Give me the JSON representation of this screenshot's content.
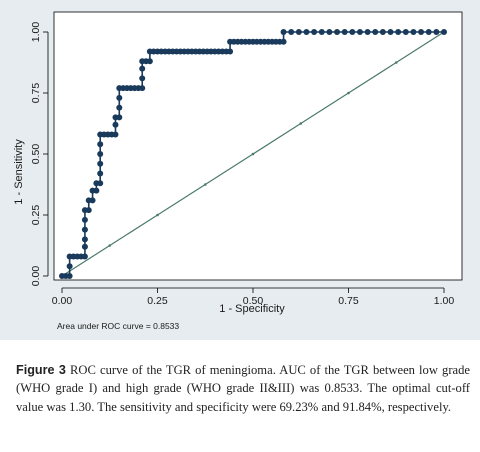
{
  "figure": {
    "caption_label": "Figure 3",
    "caption_text": "ROC curve of the TGR of meningioma. AUC of the TGR between low grade (WHO grade I) and high grade (WHO grade II&III) was 0.8533. The optimal cut-off value was 1.30. The sensitivity and specificity were 69.23% and 91.84%, respectively."
  },
  "chart_data": {
    "type": "line",
    "xlabel": "1 - Specificity",
    "ylabel": "1 - Sensitivity",
    "xlim": [
      0,
      1
    ],
    "ylim": [
      0,
      1
    ],
    "x_ticks": [
      0.0,
      0.25,
      0.5,
      0.75,
      1.0
    ],
    "x_tick_labels": [
      "0.00",
      "0.25",
      "0.50",
      "0.75",
      "1.00"
    ],
    "y_ticks": [
      0.0,
      0.25,
      0.5,
      0.75,
      1.0
    ],
    "y_tick_labels": [
      "0.00",
      "0.25",
      "0.50",
      "0.75",
      "1.00"
    ],
    "grid": false,
    "annotation": "Area under ROC curve = 0.8533",
    "colors": {
      "roc": "#1a3a5c",
      "reference": "#4a7a6a",
      "panel": "#e6ecf0"
    },
    "series": [
      {
        "points": [
          [
            0.0,
            0.0
          ],
          [
            0.01,
            0.0
          ],
          [
            0.02,
            0.0
          ],
          [
            0.02,
            0.04
          ],
          [
            0.02,
            0.08
          ],
          [
            0.03,
            0.08
          ],
          [
            0.04,
            0.08
          ],
          [
            0.05,
            0.08
          ],
          [
            0.06,
            0.08
          ],
          [
            0.06,
            0.12
          ],
          [
            0.06,
            0.15
          ],
          [
            0.06,
            0.19
          ],
          [
            0.06,
            0.23
          ],
          [
            0.06,
            0.27
          ],
          [
            0.07,
            0.27
          ],
          [
            0.07,
            0.31
          ],
          [
            0.08,
            0.31
          ],
          [
            0.08,
            0.35
          ],
          [
            0.09,
            0.35
          ],
          [
            0.09,
            0.38
          ],
          [
            0.1,
            0.38
          ],
          [
            0.1,
            0.42
          ],
          [
            0.1,
            0.46
          ],
          [
            0.1,
            0.5
          ],
          [
            0.1,
            0.54
          ],
          [
            0.1,
            0.58
          ],
          [
            0.11,
            0.58
          ],
          [
            0.12,
            0.58
          ],
          [
            0.13,
            0.58
          ],
          [
            0.14,
            0.58
          ],
          [
            0.14,
            0.62
          ],
          [
            0.14,
            0.65
          ],
          [
            0.15,
            0.65
          ],
          [
            0.15,
            0.69
          ],
          [
            0.15,
            0.73
          ],
          [
            0.15,
            0.77
          ],
          [
            0.16,
            0.77
          ],
          [
            0.17,
            0.77
          ],
          [
            0.18,
            0.77
          ],
          [
            0.19,
            0.77
          ],
          [
            0.2,
            0.77
          ],
          [
            0.21,
            0.77
          ],
          [
            0.21,
            0.81
          ],
          [
            0.21,
            0.85
          ],
          [
            0.21,
            0.88
          ],
          [
            0.22,
            0.88
          ],
          [
            0.23,
            0.88
          ],
          [
            0.23,
            0.92
          ],
          [
            0.24,
            0.92
          ],
          [
            0.25,
            0.92
          ],
          [
            0.26,
            0.92
          ],
          [
            0.27,
            0.92
          ],
          [
            0.28,
            0.92
          ],
          [
            0.29,
            0.92
          ],
          [
            0.3,
            0.92
          ],
          [
            0.31,
            0.92
          ],
          [
            0.32,
            0.92
          ],
          [
            0.33,
            0.92
          ],
          [
            0.34,
            0.92
          ],
          [
            0.35,
            0.92
          ],
          [
            0.36,
            0.92
          ],
          [
            0.37,
            0.92
          ],
          [
            0.38,
            0.92
          ],
          [
            0.39,
            0.92
          ],
          [
            0.4,
            0.92
          ],
          [
            0.41,
            0.92
          ],
          [
            0.42,
            0.92
          ],
          [
            0.43,
            0.92
          ],
          [
            0.44,
            0.92
          ],
          [
            0.44,
            0.96
          ],
          [
            0.45,
            0.96
          ],
          [
            0.46,
            0.96
          ],
          [
            0.47,
            0.96
          ],
          [
            0.48,
            0.96
          ],
          [
            0.49,
            0.96
          ],
          [
            0.5,
            0.96
          ],
          [
            0.51,
            0.96
          ],
          [
            0.52,
            0.96
          ],
          [
            0.53,
            0.96
          ],
          [
            0.54,
            0.96
          ],
          [
            0.55,
            0.96
          ],
          [
            0.56,
            0.96
          ],
          [
            0.57,
            0.96
          ],
          [
            0.58,
            0.96
          ],
          [
            0.58,
            1.0
          ],
          [
            0.6,
            1.0
          ],
          [
            0.62,
            1.0
          ],
          [
            0.64,
            1.0
          ],
          [
            0.66,
            1.0
          ],
          [
            0.68,
            1.0
          ],
          [
            0.7,
            1.0
          ],
          [
            0.72,
            1.0
          ],
          [
            0.74,
            1.0
          ],
          [
            0.76,
            1.0
          ],
          [
            0.78,
            1.0
          ],
          [
            0.8,
            1.0
          ],
          [
            0.82,
            1.0
          ],
          [
            0.84,
            1.0
          ],
          [
            0.86,
            1.0
          ],
          [
            0.88,
            1.0
          ],
          [
            0.9,
            1.0
          ],
          [
            0.92,
            1.0
          ],
          [
            0.94,
            1.0
          ],
          [
            0.96,
            1.0
          ],
          [
            0.98,
            1.0
          ],
          [
            1.0,
            1.0
          ]
        ]
      },
      {
        "points": [
          [
            0.0,
            0.0
          ],
          [
            0.125,
            0.125
          ],
          [
            0.25,
            0.25
          ],
          [
            0.375,
            0.375
          ],
          [
            0.5,
            0.5
          ],
          [
            0.625,
            0.625
          ],
          [
            0.75,
            0.75
          ],
          [
            0.875,
            0.875
          ],
          [
            1.0,
            1.0
          ]
        ]
      }
    ]
  }
}
